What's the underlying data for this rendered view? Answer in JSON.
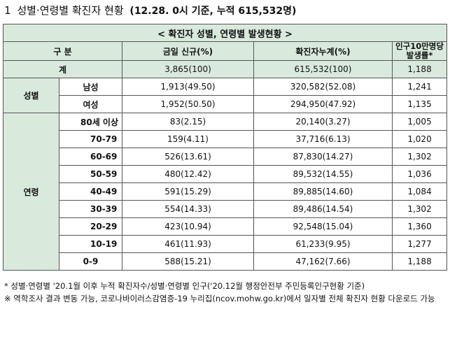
{
  "heading": {
    "number": "1",
    "title": "성별·연령별 확진자 현황",
    "parenthetical": "(12.28. 0시 기준, 누적 615,532명)"
  },
  "table": {
    "title": "< 확진자 성별, 연령별 발생현황 >",
    "headers": {
      "category": "구 분",
      "new_cases": "금일 신규(%)",
      "cumulative": "확진자누계(%)",
      "rate_line1": "인구10만명당",
      "rate_line2": "발생률*"
    },
    "total": {
      "label": "계",
      "new_cases": "3,865(100)",
      "cumulative": "615,532(100)",
      "rate": "1,188"
    },
    "sex": {
      "group_label": "성별",
      "rows": [
        {
          "label": "남성",
          "new_cases": "1,913(49.50)",
          "cumulative": "320,582(52.08)",
          "rate": "1,241"
        },
        {
          "label": "여성",
          "new_cases": "1,952(50.50)",
          "cumulative": "294,950(47.92)",
          "rate": "1,135"
        }
      ]
    },
    "age": {
      "group_label": "연령",
      "rows": [
        {
          "label": "80세 이상",
          "new_cases": "83(2.15)",
          "cumulative": "20,140(3.27)",
          "rate": "1,005"
        },
        {
          "label": "70-79",
          "new_cases": "159(4.11)",
          "cumulative": "37,716(6.13)",
          "rate": "1,020"
        },
        {
          "label": "60-69",
          "new_cases": "526(13.61)",
          "cumulative": "87,830(14.27)",
          "rate": "1,302"
        },
        {
          "label": "50-59",
          "new_cases": "480(12.42)",
          "cumulative": "89,532(14.55)",
          "rate": "1,036"
        },
        {
          "label": "40-49",
          "new_cases": "591(15.29)",
          "cumulative": "89,885(14.60)",
          "rate": "1,084"
        },
        {
          "label": "30-39",
          "new_cases": "554(14.33)",
          "cumulative": "89,486(14.54)",
          "rate": "1,302"
        },
        {
          "label": "20-29",
          "new_cases": "423(10.94)",
          "cumulative": "92,548(15.04)",
          "rate": "1,360"
        },
        {
          "label": "10-19",
          "new_cases": "461(11.93)",
          "cumulative": "61,233(9.95)",
          "rate": "1,277"
        },
        {
          "label": "0-9",
          "new_cases": "588(15.21)",
          "cumulative": "47,162(7.66)",
          "rate": "1,188"
        }
      ]
    }
  },
  "notes": [
    "* 성별·연령별 '20.1월 이후 누적 확진자수/성별·연령별 인구('20.12월 행정안전부 주민등록인구현황 기준)",
    "※ 역학조사 결과 변동 가능, 코로나바이러스감염증-19 누리집(ncov.mohw.go.kr)에서 일자별 전체 확진자 현황 다운로드 가능"
  ]
}
